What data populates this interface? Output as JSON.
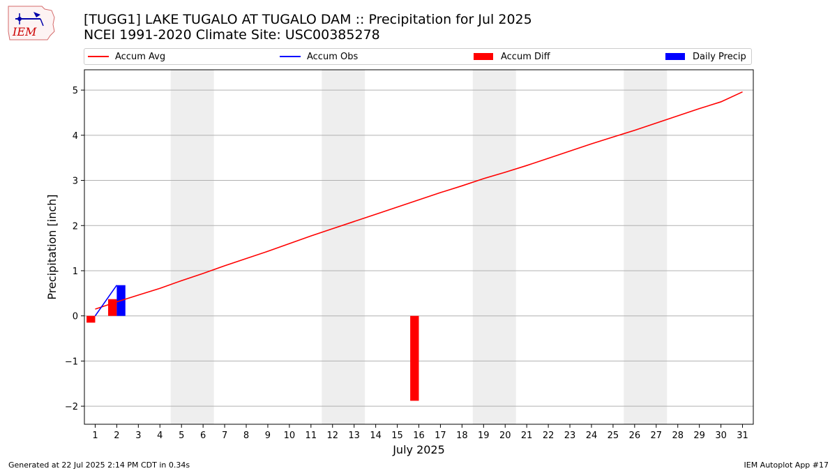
{
  "header": {
    "title_line1": "[TUGG1] LAKE TUGALO  AT TUGALO DAM :: Precipitation for Jul 2025",
    "title_line2": "NCEI 1991-2020 Climate Site: USC00385278"
  },
  "logo": {
    "text": "IEM",
    "icon": "iem-logo"
  },
  "legend": {
    "items": [
      {
        "label": "Accum Avg",
        "kind": "line",
        "color": "#ff0000"
      },
      {
        "label": "Accum Obs",
        "kind": "line",
        "color": "#0000ff"
      },
      {
        "label": "Accum Diff",
        "kind": "box",
        "color": "#ff0000"
      },
      {
        "label": "Daily Precip",
        "kind": "box",
        "color": "#0000ff"
      }
    ]
  },
  "footer": {
    "left": "Generated at 22 Jul 2025 2:14 PM CDT in 0.34s",
    "right": "IEM Autoplot App #17"
  },
  "chart_data": {
    "type": "bar",
    "title": "[TUGG1] LAKE TUGALO  AT TUGALO DAM :: Precipitation for Jul 2025",
    "xlabel": "July 2025",
    "ylabel": "Precipitation [inch]",
    "xlim": [
      0.5,
      31.5
    ],
    "ylim": [
      -2.4,
      5.45
    ],
    "yticks": [
      -2,
      -1,
      0,
      1,
      2,
      3,
      4,
      5
    ],
    "ytick_labels": [
      "−2",
      "−1",
      "0",
      "1",
      "2",
      "3",
      "4",
      "5"
    ],
    "xticks": [
      1,
      2,
      3,
      4,
      5,
      6,
      7,
      8,
      9,
      10,
      11,
      12,
      13,
      14,
      15,
      16,
      17,
      18,
      19,
      20,
      21,
      22,
      23,
      24,
      25,
      26,
      27,
      28,
      29,
      30,
      31
    ],
    "grid": "horizontal",
    "legend_position": "top",
    "weekend_bands": [
      [
        5,
        6
      ],
      [
        12,
        13
      ],
      [
        19,
        20
      ],
      [
        26,
        27
      ]
    ],
    "series": [
      {
        "name": "Accum Avg",
        "kind": "line",
        "color": "#ff0000",
        "x": [
          1,
          2,
          3,
          4,
          5,
          6,
          7,
          8,
          9,
          10,
          11,
          12,
          13,
          14,
          15,
          16,
          17,
          18,
          19,
          20,
          21,
          22,
          23,
          24,
          25,
          26,
          27,
          28,
          29,
          30,
          31
        ],
        "values": [
          0.15,
          0.31,
          0.46,
          0.61,
          0.78,
          0.94,
          1.11,
          1.27,
          1.43,
          1.6,
          1.77,
          1.93,
          2.09,
          2.25,
          2.41,
          2.57,
          2.73,
          2.88,
          3.04,
          3.18,
          3.33,
          3.49,
          3.65,
          3.81,
          3.96,
          4.11,
          4.27,
          4.43,
          4.59,
          4.74,
          4.96
        ]
      },
      {
        "name": "Accum Obs",
        "kind": "line",
        "color": "#0000ff",
        "x": [
          1,
          2
        ],
        "values": [
          0.0,
          0.68
        ]
      },
      {
        "name": "Accum Diff",
        "kind": "bar",
        "color": "#ff0000",
        "x": [
          1,
          2,
          16
        ],
        "values": [
          -0.15,
          0.37,
          -1.88
        ]
      },
      {
        "name": "Daily Precip",
        "kind": "bar",
        "color": "#0000ff",
        "x": [
          2
        ],
        "values": [
          0.68
        ]
      }
    ]
  }
}
